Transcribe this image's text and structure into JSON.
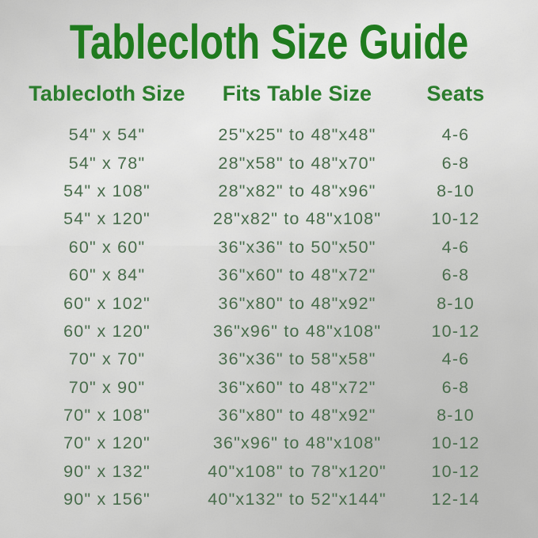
{
  "chart_data": {
    "type": "table",
    "title": "Tablecloth Size Guide",
    "columns": [
      "Tablecloth Size",
      "Fits Table Size",
      "Seats"
    ],
    "rows": [
      [
        "54\" x 54\"",
        "25\"x25\" to 48\"x48\"",
        "4-6"
      ],
      [
        "54\" x 78\"",
        "28\"x58\" to 48\"x70\"",
        "6-8"
      ],
      [
        "54\" x 108\"",
        "28\"x82\" to 48\"x96\"",
        "8-10"
      ],
      [
        "54\" x 120\"",
        "28\"x82\" to 48\"x108\"",
        "10-12"
      ],
      [
        "60\" x 60\"",
        "36\"x36\" to 50\"x50\"",
        "4-6"
      ],
      [
        "60\" x 84\"",
        "36\"x60\" to 48\"x72\"",
        "6-8"
      ],
      [
        "60\" x 102\"",
        "36\"x80\" to 48\"x92\"",
        "8-10"
      ],
      [
        "60\" x 120\"",
        "36\"x96\" to 48\"x108\"",
        "10-12"
      ],
      [
        "70\" x 70\"",
        "36\"x36\" to 58\"x58\"",
        "4-6"
      ],
      [
        "70\" x 90\"",
        "36\"x60\" to 48\"x72\"",
        "6-8"
      ],
      [
        "70\" x 108\"",
        "36\"x80\" to 48\"x92\"",
        "8-10"
      ],
      [
        "70\" x 120\"",
        "36\"x96\" to 48\"x108\"",
        "10-12"
      ],
      [
        "90\" x 132\"",
        "40\"x108\" to 78\"x120\"",
        "10-12"
      ],
      [
        "90\" x 156\"",
        "40\"x132\" to 52\"x144\"",
        "12-14"
      ]
    ],
    "layout": "three-column centered table on silver foil background"
  },
  "colors": {
    "title_green": "#1f7a1e",
    "header_green": "#2b7c2d",
    "row_green": "#476b4a",
    "background_silver": "#cfcfcd"
  }
}
